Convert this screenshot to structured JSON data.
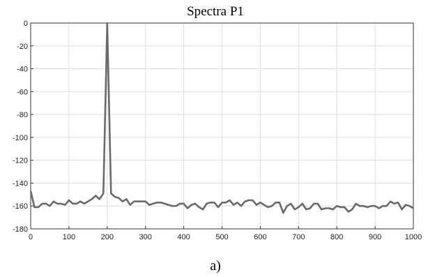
{
  "chart_data": {
    "type": "line",
    "title": "Spectra P1",
    "xlabel": "",
    "ylabel": "",
    "xlim": [
      0,
      1000
    ],
    "ylim": [
      -180,
      0
    ],
    "xticks": [
      0,
      100,
      200,
      300,
      400,
      500,
      600,
      700,
      800,
      900,
      1000
    ],
    "yticks": [
      0,
      -20,
      -40,
      -60,
      -80,
      -100,
      -120,
      -140,
      -160,
      -180
    ],
    "grid": true,
    "caption": "a)",
    "colors": {
      "line": "#6a6a6a",
      "grid": "#dedede",
      "axis": "#333333"
    },
    "series": [
      {
        "x": [
          0,
          10,
          20,
          30,
          40,
          50,
          60,
          70,
          80,
          90,
          100,
          110,
          120,
          130,
          140,
          150,
          160,
          170,
          180,
          190,
          200,
          210,
          220,
          230,
          240,
          250,
          260,
          270,
          280,
          290,
          300,
          310,
          320,
          330,
          340,
          350,
          360,
          370,
          380,
          390,
          400,
          410,
          420,
          430,
          440,
          450,
          460,
          470,
          480,
          490,
          500,
          510,
          520,
          530,
          540,
          550,
          560,
          570,
          580,
          590,
          600,
          610,
          620,
          630,
          640,
          650,
          660,
          670,
          680,
          690,
          700,
          710,
          720,
          730,
          740,
          750,
          760,
          770,
          780,
          790,
          800,
          810,
          820,
          830,
          840,
          850,
          860,
          870,
          880,
          890,
          900,
          910,
          920,
          930,
          940,
          950,
          960,
          970,
          980,
          990,
          1000
        ],
        "y": [
          -147,
          -161,
          -161,
          -158,
          -158,
          -160,
          -156,
          -158,
          -158,
          -159,
          -155,
          -158,
          -158,
          -156,
          -158,
          -156,
          -154,
          -151,
          -154,
          -149,
          0,
          -149,
          -152,
          -153,
          -156,
          -154,
          -159,
          -156,
          -156,
          -156,
          -156,
          -159,
          -158,
          -157,
          -157,
          -158,
          -159,
          -160,
          -160,
          -158,
          -158,
          -162,
          -159,
          -158,
          -161,
          -163,
          -158,
          -157,
          -157,
          -161,
          -157,
          -157,
          -155,
          -159,
          -157,
          -160,
          -156,
          -155,
          -155,
          -159,
          -157,
          -159,
          -161,
          -160,
          -157,
          -157,
          -166,
          -160,
          -158,
          -163,
          -161,
          -158,
          -163,
          -162,
          -158,
          -158,
          -163,
          -162,
          -162,
          -163,
          -160,
          -161,
          -161,
          -165,
          -163,
          -158,
          -160,
          -160,
          -161,
          -160,
          -160,
          -162,
          -160,
          -160,
          -156,
          -158,
          -157,
          -163,
          -159,
          -160,
          -162
        ]
      }
    ]
  }
}
